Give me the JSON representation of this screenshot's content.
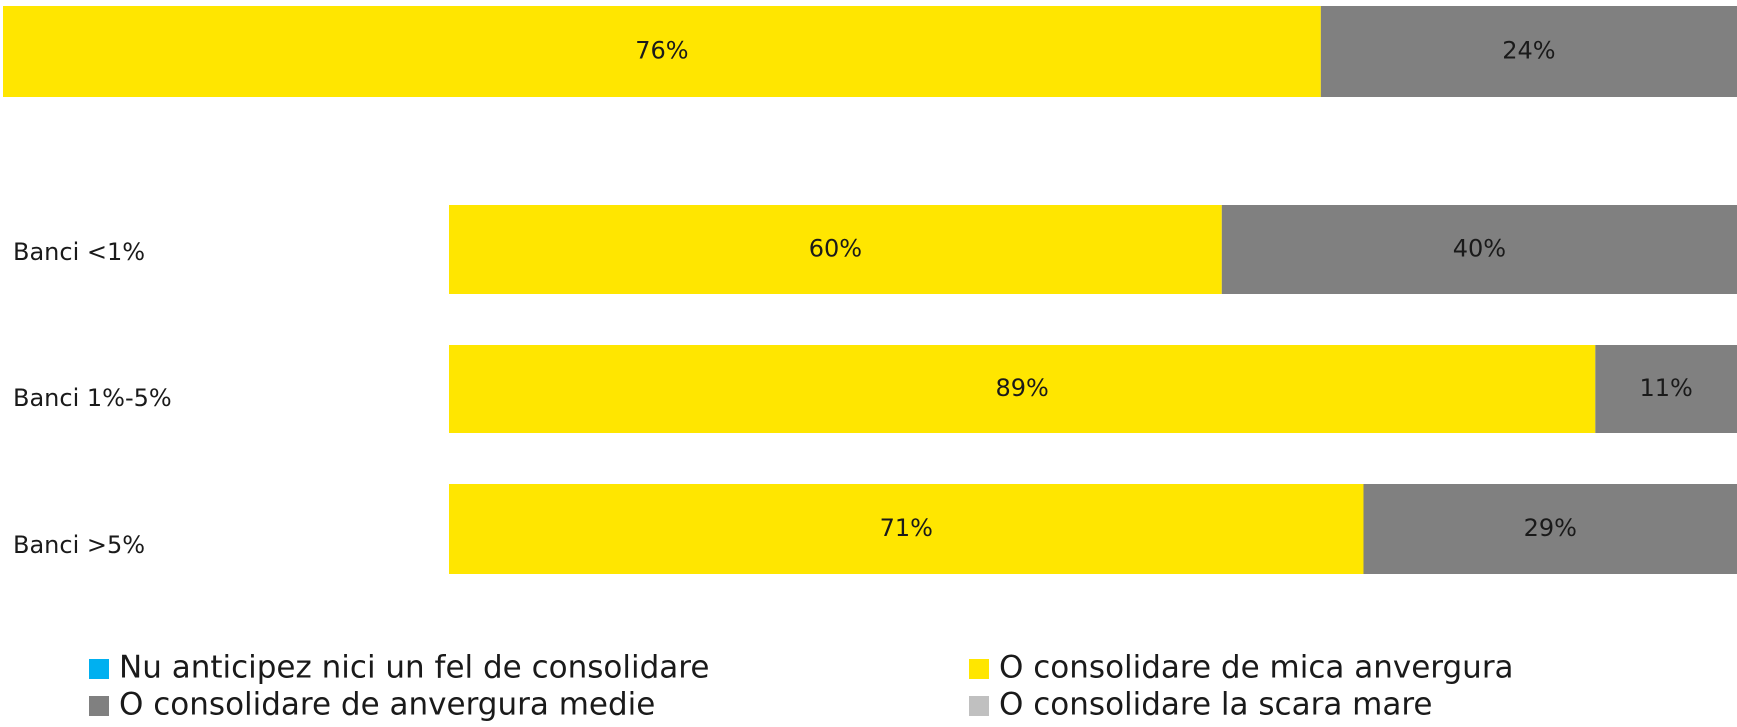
{
  "chart_data": {
    "type": "stacked-bar-horizontal",
    "categories": [
      null,
      "Banci <1%",
      "Banci 1%-5%",
      "Banci >5%"
    ],
    "xlim": [
      0,
      100
    ],
    "series": [
      {
        "name": "Nu anticipez nici un fel de consolidare",
        "color": "#00b0f0",
        "values": [
          0,
          0,
          0,
          0
        ]
      },
      {
        "name": "O consolidare de mica anvergura",
        "color": "#ffe600",
        "values": [
          76,
          60,
          89,
          71
        ],
        "value_labels": [
          "76%",
          "60%",
          "89%",
          "71%"
        ]
      },
      {
        "name": "O consolidare de anvergura medie",
        "color": "#808080",
        "values": [
          24,
          40,
          11,
          29
        ],
        "value_labels": [
          "24%",
          "40%",
          "11%",
          "29%"
        ]
      },
      {
        "name": "O consolidare la scara mare",
        "color": "#c0c0c0",
        "values": [
          0,
          0,
          0,
          0
        ]
      }
    ],
    "legend": "bottom"
  }
}
